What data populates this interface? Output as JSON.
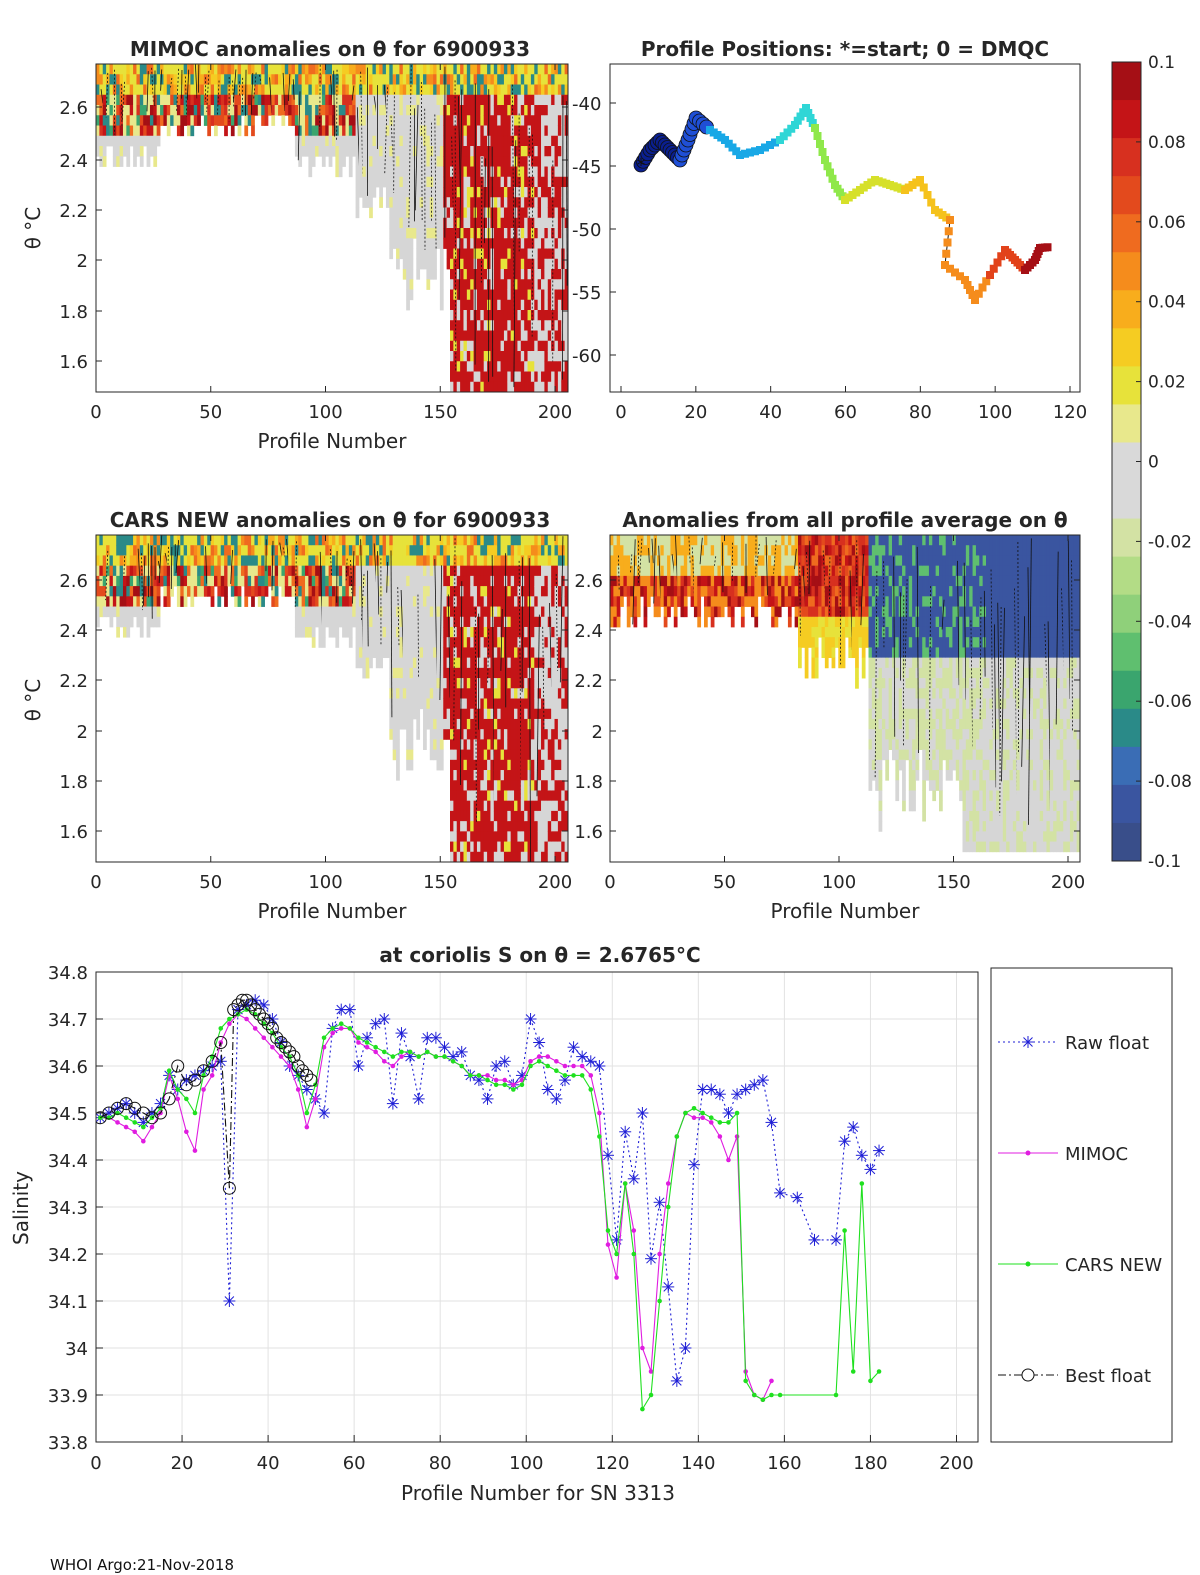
{
  "footer": "WHOI Argo:21-Nov-2018",
  "colorbar": {
    "ticks": [
      "0.1",
      "0.08",
      "0.06",
      "0.04",
      "0.02",
      "0",
      "-0.02",
      "-0.04",
      "-0.06",
      "-0.08",
      "-0.1"
    ],
    "colors": [
      "#a50f15",
      "#c41417",
      "#d7301f",
      "#e34a1d",
      "#ef6b1f",
      "#f58c1c",
      "#f8ad1c",
      "#f5cc22",
      "#e7e23a",
      "#e8e88c",
      "#d9d9d9",
      "#d9d9d9",
      "#d3e2a4",
      "#b3dc86",
      "#8fd07a",
      "#5fbf6f",
      "#3aa56e",
      "#2a8a88",
      "#3a6db5",
      "#3a55a0",
      "#394e8a"
    ]
  },
  "panels": {
    "mimoc": {
      "title": "MIMOC anomalies on θ  for 6900933",
      "xlabel": "Profile Number",
      "ylabel": "θ °C",
      "xticks": [
        "0",
        "50",
        "100",
        "150",
        "200"
      ],
      "yticks": [
        "2.6",
        "2.4",
        "2.2",
        "2",
        "1.8",
        "1.6"
      ]
    },
    "positions": {
      "title": "Profile Positions: *=start; 0 = DMQC",
      "xticks": [
        "0",
        "20",
        "40",
        "60",
        "80",
        "100",
        "120"
      ],
      "yticks": [
        "-40",
        "-45",
        "-50",
        "-55",
        "-60"
      ]
    },
    "cars": {
      "title": "CARS NEW anomalies on θ for 6900933",
      "xlabel": "Profile Number",
      "ylabel": "θ °C",
      "xticks": [
        "0",
        "50",
        "100",
        "150",
        "200"
      ],
      "yticks": [
        "2.6",
        "2.4",
        "2.2",
        "2",
        "1.8",
        "1.6"
      ]
    },
    "allavg": {
      "title": "Anomalies from all profile average on θ",
      "xlabel": "Profile Number",
      "xticks": [
        "0",
        "50",
        "100",
        "150",
        "200"
      ],
      "yticks": [
        "2.6",
        "2.4",
        "2.2",
        "2",
        "1.8",
        "1.6"
      ]
    }
  },
  "chart_data": {
    "type": "line",
    "title": "at coriolis S on θ = 2.6765°C",
    "xlabel": "Profile Number for SN 3313",
    "ylabel": "Salinity",
    "xlim": [
      0,
      205
    ],
    "ylim": [
      33.8,
      34.8
    ],
    "xticks": [
      "0",
      "20",
      "40",
      "60",
      "80",
      "100",
      "120",
      "140",
      "160",
      "180",
      "200"
    ],
    "yticks": [
      "34.8",
      "34.7",
      "34.6",
      "34.5",
      "34.4",
      "34.3",
      "34.2",
      "34.1",
      "34",
      "33.9",
      "33.8"
    ],
    "legend_position": "right",
    "series": [
      {
        "name": "Raw float",
        "color": "#1f1fd6",
        "x": [
          1,
          3,
          5,
          7,
          9,
          11,
          13,
          15,
          17,
          19,
          21,
          23,
          25,
          27,
          29,
          31,
          33,
          35,
          37,
          39,
          41,
          43,
          45,
          47,
          49,
          51,
          53,
          55,
          57,
          59,
          61,
          63,
          65,
          67,
          69,
          71,
          73,
          75,
          77,
          79,
          81,
          83,
          85,
          87,
          89,
          91,
          93,
          95,
          97,
          99,
          101,
          103,
          105,
          107,
          109,
          111,
          113,
          115,
          117,
          119,
          121,
          123,
          125,
          127,
          129,
          131,
          133,
          135,
          137,
          139,
          141,
          143,
          145,
          147,
          149,
          151,
          153,
          155,
          157,
          159,
          163,
          167,
          172,
          174,
          176,
          178,
          180,
          182
        ],
        "values": [
          34.49,
          34.5,
          34.51,
          34.52,
          34.5,
          34.48,
          34.5,
          34.52,
          34.58,
          34.55,
          34.57,
          34.58,
          34.59,
          34.6,
          34.61,
          34.1,
          34.72,
          34.73,
          34.74,
          34.73,
          34.7,
          34.65,
          34.6,
          34.58,
          34.55,
          34.53,
          34.5,
          34.68,
          34.72,
          34.72,
          34.6,
          34.66,
          34.69,
          34.7,
          34.52,
          34.67,
          34.62,
          34.53,
          34.66,
          34.66,
          34.64,
          34.62,
          34.63,
          34.58,
          34.57,
          34.53,
          34.6,
          34.61,
          34.56,
          34.58,
          34.7,
          34.65,
          34.55,
          34.53,
          34.57,
          34.64,
          34.62,
          34.61,
          34.6,
          34.41,
          34.23,
          34.46,
          34.36,
          34.5,
          34.19,
          34.31,
          34.13,
          33.93,
          34.0,
          34.39,
          34.55,
          34.55,
          34.54,
          34.5,
          34.54,
          34.55,
          34.56,
          34.57,
          34.48,
          34.33,
          34.32,
          34.23,
          34.23,
          34.44,
          34.47,
          34.41,
          34.38,
          34.42
        ]
      },
      {
        "name": "MIMOC",
        "color": "#e01ce0",
        "x": [
          1,
          3,
          5,
          7,
          9,
          11,
          13,
          15,
          17,
          19,
          21,
          23,
          25,
          27,
          29,
          31,
          33,
          35,
          37,
          39,
          41,
          43,
          45,
          47,
          49,
          51,
          53,
          55,
          57,
          59,
          61,
          63,
          65,
          67,
          69,
          71,
          73,
          75,
          77,
          79,
          81,
          83,
          85,
          87,
          89,
          91,
          93,
          95,
          97,
          99,
          101,
          103,
          105,
          107,
          109,
          111,
          113,
          115,
          117,
          119,
          121,
          123,
          125,
          127,
          129,
          131,
          133,
          135,
          137,
          139,
          141,
          143,
          145,
          147,
          149,
          151,
          153,
          155,
          157
        ],
        "values": [
          34.49,
          34.49,
          34.48,
          34.47,
          34.46,
          34.44,
          34.47,
          34.5,
          34.58,
          34.53,
          34.46,
          34.42,
          34.55,
          34.58,
          34.65,
          34.69,
          34.71,
          34.7,
          34.68,
          34.66,
          34.64,
          34.62,
          34.6,
          34.55,
          34.47,
          34.53,
          34.64,
          34.67,
          34.68,
          34.68,
          34.65,
          34.64,
          34.63,
          34.61,
          34.6,
          34.62,
          34.63,
          34.62,
          34.63,
          34.62,
          34.62,
          34.61,
          34.6,
          34.58,
          34.58,
          34.58,
          34.57,
          34.57,
          34.56,
          34.57,
          34.61,
          34.62,
          34.62,
          34.61,
          34.6,
          34.6,
          34.6,
          34.58,
          34.5,
          34.22,
          34.15,
          34.35,
          34.25,
          34.0,
          33.95,
          34.2,
          34.35,
          34.45,
          34.5,
          34.49,
          34.49,
          34.48,
          34.45,
          34.4,
          34.45,
          33.95,
          33.9,
          33.89,
          33.93
        ]
      },
      {
        "name": "CARS NEW",
        "color": "#1fe01f",
        "x": [
          1,
          3,
          5,
          7,
          9,
          11,
          13,
          15,
          17,
          19,
          21,
          23,
          25,
          27,
          29,
          31,
          33,
          35,
          37,
          39,
          41,
          43,
          45,
          47,
          49,
          51,
          53,
          55,
          57,
          59,
          61,
          63,
          65,
          67,
          69,
          71,
          73,
          75,
          77,
          79,
          81,
          83,
          85,
          87,
          89,
          91,
          93,
          95,
          97,
          99,
          101,
          103,
          105,
          107,
          109,
          111,
          113,
          115,
          117,
          119,
          121,
          123,
          125,
          127,
          129,
          131,
          133,
          135,
          137,
          139,
          141,
          143,
          145,
          147,
          149,
          151,
          153,
          155,
          157,
          159,
          172,
          174,
          176,
          178,
          180,
          182
        ],
        "values": [
          34.49,
          34.49,
          34.5,
          34.49,
          34.48,
          34.47,
          34.49,
          34.51,
          34.59,
          34.55,
          34.53,
          34.5,
          34.58,
          34.62,
          34.68,
          34.7,
          34.71,
          34.72,
          34.71,
          34.69,
          34.67,
          34.64,
          34.62,
          34.58,
          34.5,
          34.56,
          34.66,
          34.68,
          34.69,
          34.68,
          34.66,
          34.65,
          34.64,
          34.63,
          34.62,
          34.63,
          34.63,
          34.62,
          34.63,
          34.62,
          34.62,
          34.61,
          34.6,
          34.58,
          34.58,
          34.57,
          34.56,
          34.56,
          34.55,
          34.56,
          34.6,
          34.61,
          34.6,
          34.59,
          34.58,
          34.58,
          34.58,
          34.55,
          34.45,
          34.25,
          34.2,
          34.35,
          34.2,
          33.87,
          33.9,
          34.1,
          34.3,
          34.45,
          34.5,
          34.51,
          34.5,
          34.49,
          34.48,
          34.48,
          34.5,
          33.93,
          33.9,
          33.89,
          33.9,
          33.9,
          33.9,
          34.25,
          33.95,
          34.35,
          33.93,
          33.95
        ]
      },
      {
        "name": "Best float",
        "color": "#111111",
        "x": [
          1,
          3,
          5,
          7,
          9,
          11,
          13,
          15,
          17,
          19,
          21,
          23,
          25,
          27,
          29,
          31,
          32,
          33,
          34,
          35,
          36,
          37,
          38,
          39,
          40,
          41,
          42,
          43,
          44,
          45,
          46,
          47,
          48,
          49,
          50
        ],
        "values": [
          34.49,
          34.5,
          34.51,
          34.52,
          34.51,
          34.5,
          34.49,
          34.5,
          34.53,
          34.6,
          34.56,
          34.57,
          34.59,
          34.61,
          34.65,
          34.34,
          34.72,
          34.73,
          34.74,
          34.74,
          34.73,
          34.72,
          34.71,
          34.7,
          34.69,
          34.68,
          34.66,
          34.65,
          34.64,
          34.63,
          34.62,
          34.6,
          34.59,
          34.58,
          34.57
        ]
      }
    ]
  }
}
